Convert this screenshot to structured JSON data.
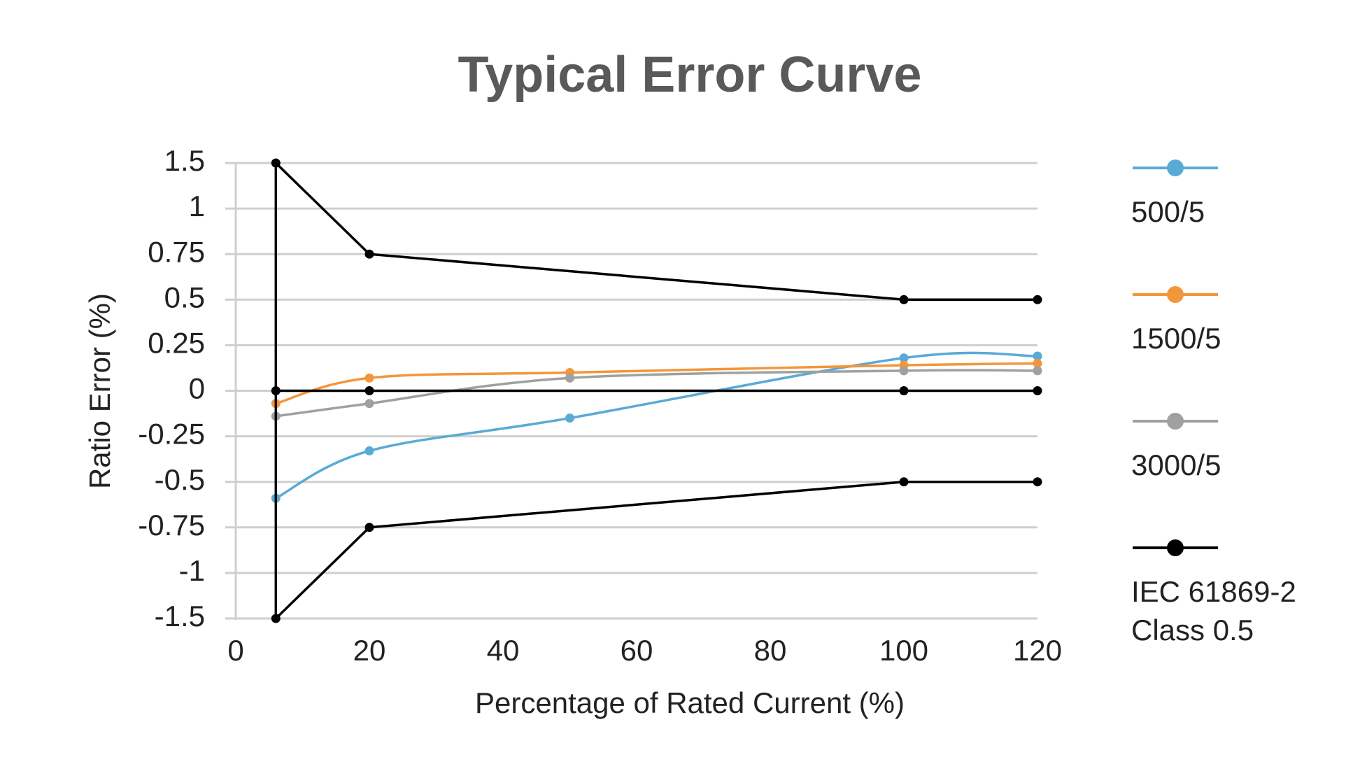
{
  "chart_data": {
    "type": "scatter",
    "title": "Typical Error Curve",
    "x_label": "Percentage of Rated Current (%)",
    "y_label": "Ratio Error (%)",
    "xlim": [
      0,
      120
    ],
    "xticks": [
      0,
      20,
      40,
      60,
      80,
      100,
      120
    ],
    "ylim": [
      -1.5,
      1.5
    ],
    "yticks": [
      1.5,
      1,
      0.75,
      0.5,
      0.25,
      0,
      -0.25,
      -0.5,
      -0.75,
      -1,
      -1.5
    ],
    "grid": true,
    "legend_position": "right",
    "series": [
      {
        "name": "500/5",
        "color": "#5aaad6",
        "smooth": true,
        "x": [
          6,
          20,
          50,
          100,
          120
        ],
        "values": [
          -0.59,
          -0.33,
          -0.15,
          0.18,
          0.19
        ]
      },
      {
        "name": "1500/5",
        "color": "#f3963a",
        "smooth": true,
        "x": [
          6,
          20,
          50,
          100,
          120
        ],
        "values": [
          -0.07,
          0.07,
          0.1,
          0.14,
          0.15
        ]
      },
      {
        "name": "3000/5",
        "color": "#a0a0a0",
        "smooth": true,
        "x": [
          6,
          20,
          50,
          100,
          120
        ],
        "values": [
          -0.14,
          -0.07,
          0.07,
          0.11,
          0.11
        ]
      },
      {
        "name": "IEC 61869-2 Class 0.5",
        "color": "#000000",
        "smooth": false,
        "x": [
          120,
          100,
          20,
          6,
          6,
          20,
          100,
          120,
          null,
          6,
          20,
          100,
          120
        ],
        "values": [
          0.5,
          0.5,
          0.75,
          1.5,
          -1.5,
          -0.75,
          -0.5,
          -0.5,
          null,
          0,
          0,
          0,
          0
        ]
      }
    ]
  }
}
